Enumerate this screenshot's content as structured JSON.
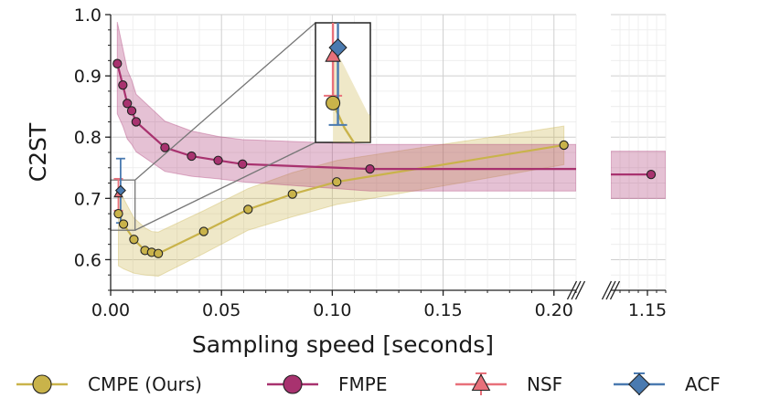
{
  "chart_data": {
    "type": "line",
    "xlabel": "Sampling speed [seconds]",
    "ylabel": "C2ST",
    "ylim": [
      0.55,
      1.0
    ],
    "xlim_main": [
      0.0,
      0.21
    ],
    "xlim_broken": [
      1.13,
      1.16
    ],
    "x_broken_axis": true,
    "grid": true,
    "legend_position": "bottom",
    "x_ticks": [
      {
        "value": 0.0,
        "label": "0.00"
      },
      {
        "value": 0.05,
        "label": "0.05"
      },
      {
        "value": 0.1,
        "label": "0.10"
      },
      {
        "value": 0.15,
        "label": "0.15"
      },
      {
        "value": 0.2,
        "label": "0.20"
      },
      {
        "value": 1.15,
        "label": "1.15"
      }
    ],
    "y_ticks": [
      {
        "value": 0.6,
        "label": "0.6"
      },
      {
        "value": 0.7,
        "label": "0.7"
      },
      {
        "value": 0.8,
        "label": "0.8"
      },
      {
        "value": 0.9,
        "label": "0.9"
      },
      {
        "value": 1.0,
        "label": "1.0"
      }
    ],
    "series": [
      {
        "name": "CMPE (Ours)",
        "color": "#c9b34a",
        "marker": "circle",
        "x": [
          0.0035,
          0.0058,
          0.0105,
          0.0155,
          0.0185,
          0.0215,
          0.042,
          0.062,
          0.082,
          0.102,
          0.2045
        ],
        "y": [
          0.675,
          0.658,
          0.633,
          0.615,
          0.612,
          0.61,
          0.646,
          0.682,
          0.707,
          0.727,
          0.787
        ],
        "upper": [
          0.715,
          0.7,
          0.668,
          0.652,
          0.646,
          0.645,
          0.68,
          0.716,
          0.742,
          0.762,
          0.818
        ],
        "lower": [
          0.59,
          0.585,
          0.578,
          0.575,
          0.574,
          0.573,
          0.61,
          0.648,
          0.67,
          0.69,
          0.755
        ]
      },
      {
        "name": "FMPE",
        "color": "#a8326f",
        "marker": "circle",
        "x": [
          0.003,
          0.0055,
          0.0075,
          0.0095,
          0.0115,
          0.0245,
          0.0365,
          0.0485,
          0.0595,
          0.117,
          1.152
        ],
        "y": [
          0.92,
          0.885,
          0.855,
          0.843,
          0.825,
          0.783,
          0.769,
          0.762,
          0.756,
          0.748,
          0.739
        ],
        "upper": [
          0.988,
          0.945,
          0.91,
          0.893,
          0.87,
          0.826,
          0.81,
          0.801,
          0.796,
          0.788,
          0.777
        ],
        "lower": [
          0.838,
          0.818,
          0.797,
          0.788,
          0.776,
          0.744,
          0.736,
          0.732,
          0.727,
          0.712,
          0.7
        ]
      },
      {
        "name": "NSF",
        "color": "#e8707a",
        "marker": "triangle",
        "x": [
          0.0035
        ],
        "y": [
          0.707
        ],
        "yerr_low": [
          0.68
        ],
        "yerr_high": [
          0.732
        ]
      },
      {
        "name": "ACF",
        "color": "#4a7ab0",
        "marker": "diamond",
        "x": [
          0.0045
        ],
        "y": [
          0.713
        ],
        "yerr_low": [
          0.66
        ],
        "yerr_high": [
          0.765
        ]
      }
    ]
  }
}
